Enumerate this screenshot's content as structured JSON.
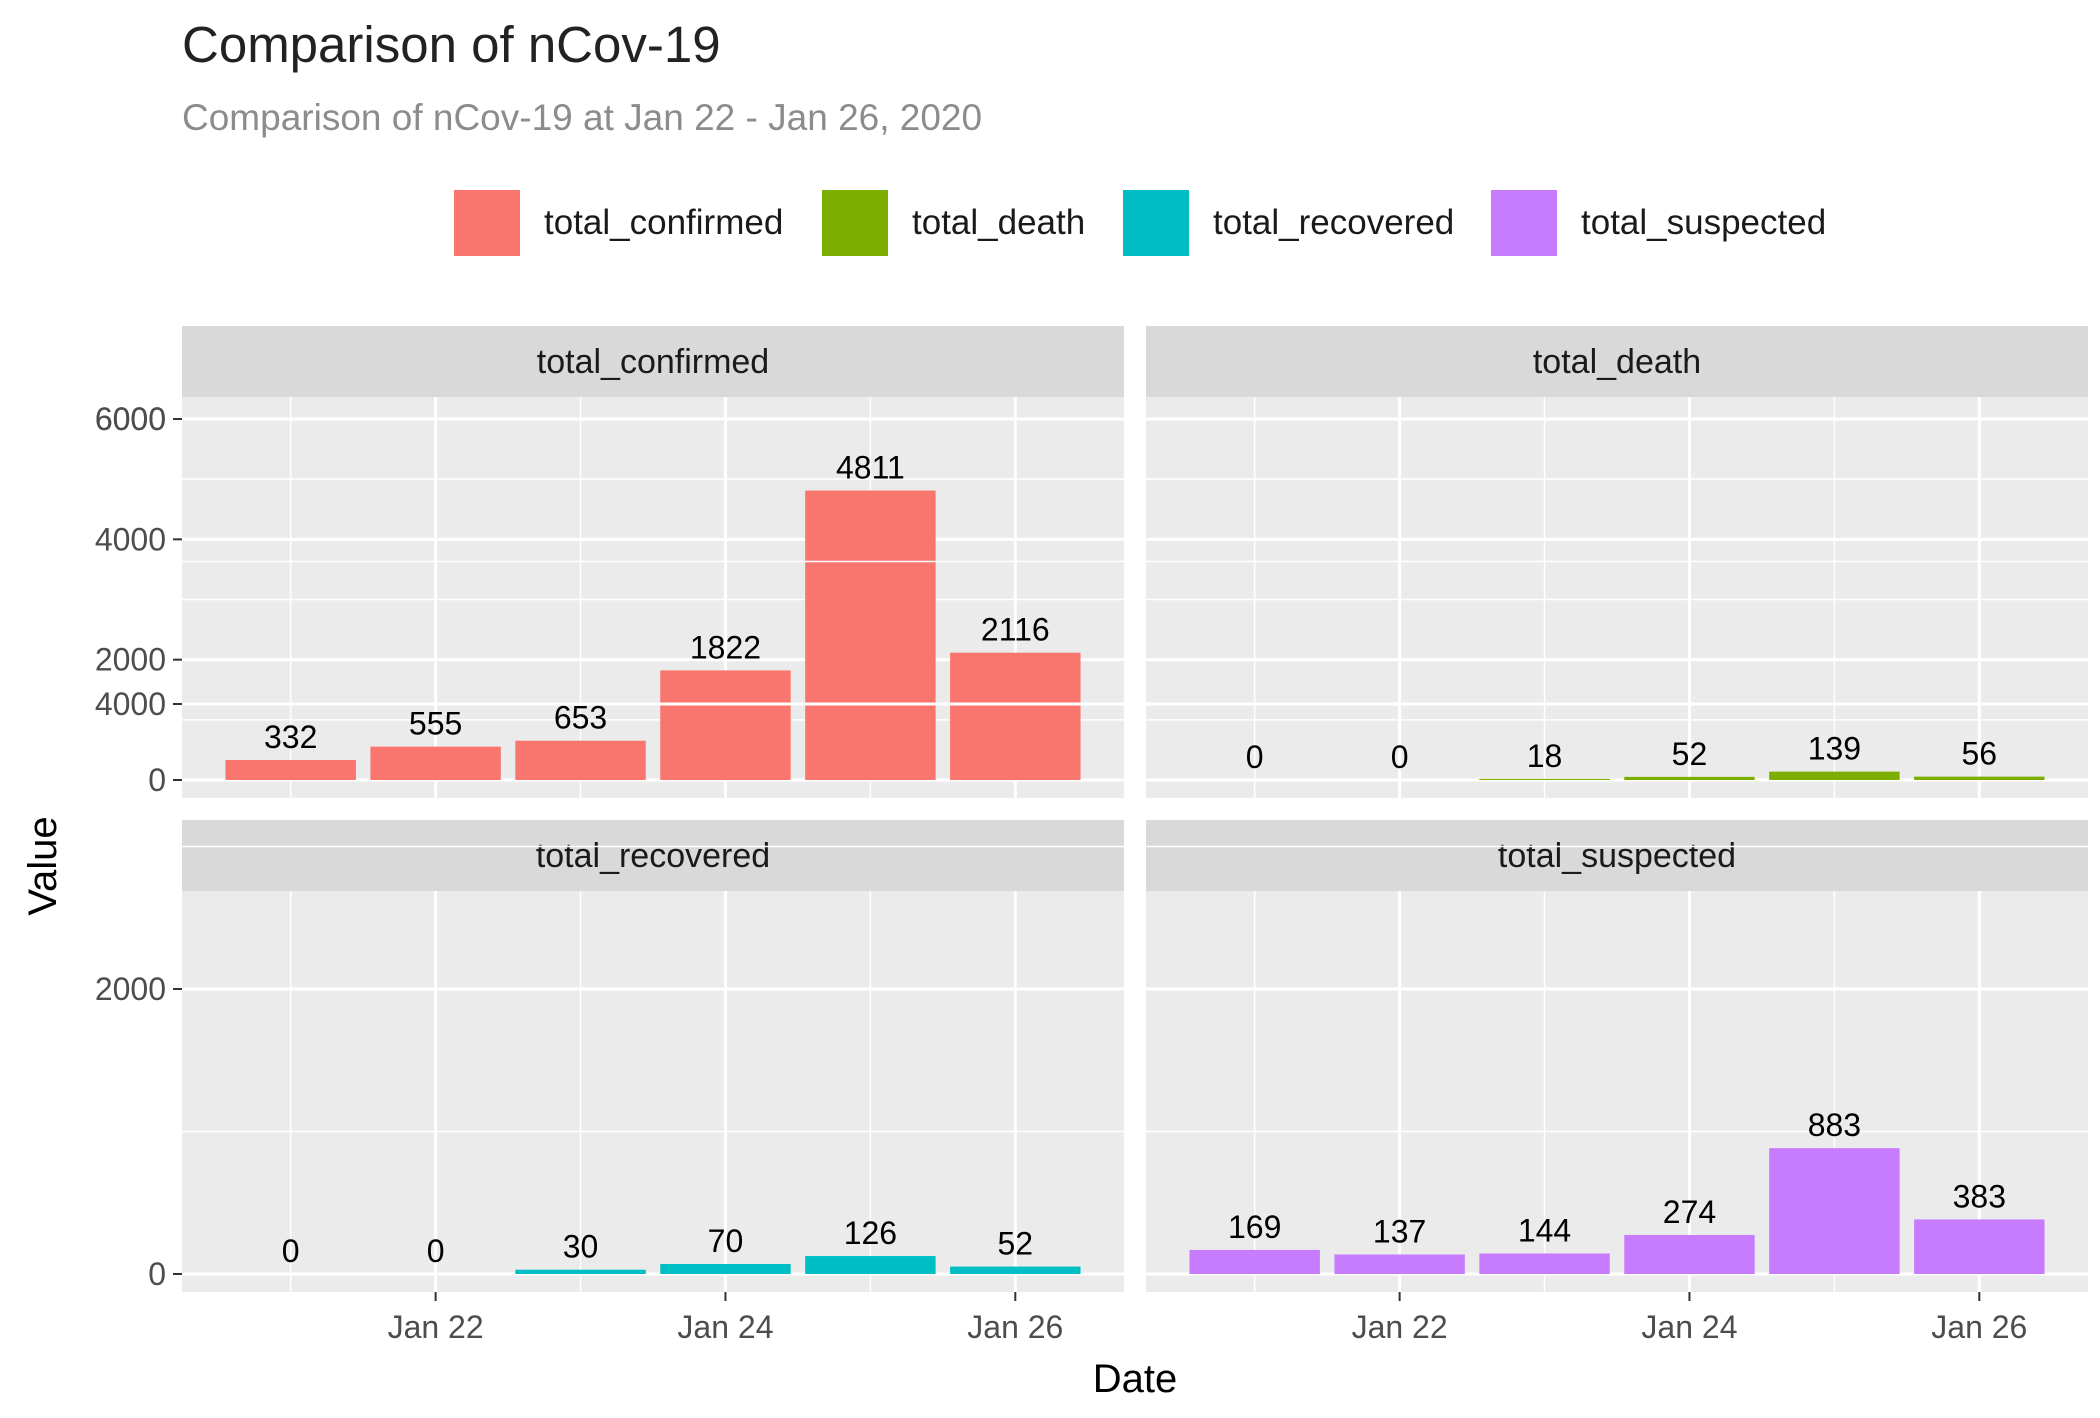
{
  "chart_data": {
    "type": "bar",
    "title": "Comparison of nCov-19",
    "subtitle": "Comparison of nCov-19 at Jan 22 - Jan 26, 2020",
    "xlabel": "Date",
    "ylabel": "Value",
    "x_tick_labels": [
      "Jan 22",
      "Jan 24",
      "Jan 26"
    ],
    "y_ticks": [
      0,
      2000,
      4000,
      6000
    ],
    "ylim": [
      0,
      6000
    ],
    "grid": true,
    "legend_position": "top",
    "facet_layout": "2x2",
    "dates": [
      "2020-01-21",
      "2020-01-22",
      "2020-01-23",
      "2020-01-24",
      "2020-01-25",
      "2020-01-26"
    ],
    "series": [
      {
        "name": "total_confirmed",
        "color": "#F8766D",
        "values": [
          332,
          555,
          653,
          1822,
          4811,
          2116
        ]
      },
      {
        "name": "total_death",
        "color": "#7CAE00",
        "values": [
          0,
          0,
          18,
          52,
          139,
          56
        ]
      },
      {
        "name": "total_recovered",
        "color": "#00BFC4",
        "values": [
          0,
          0,
          30,
          70,
          126,
          52
        ]
      },
      {
        "name": "total_suspected",
        "color": "#C77CFF",
        "values": [
          169,
          137,
          144,
          274,
          883,
          383
        ]
      }
    ]
  }
}
